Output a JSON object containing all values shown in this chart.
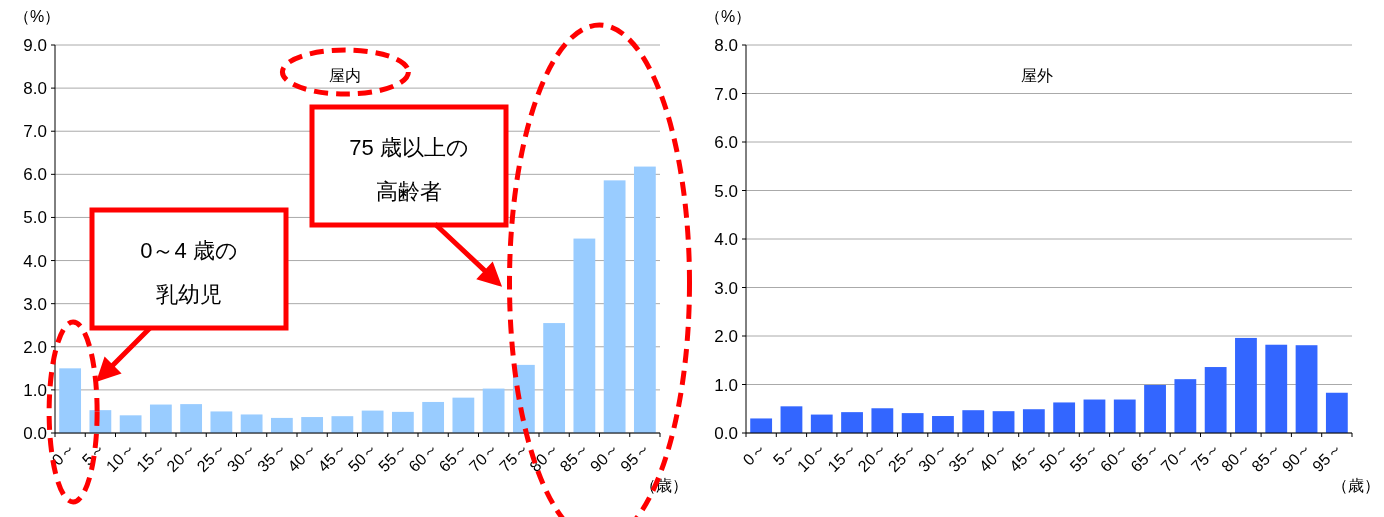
{
  "chart_data": [
    {
      "type": "bar",
      "title": "屋内",
      "ylabel": "（%）",
      "xlabel": "（歳）",
      "grid": "y",
      "color": "#99ccff",
      "categories": [
        "0～",
        "5～",
        "10～",
        "15～",
        "20～",
        "25～",
        "30～",
        "35～",
        "40～",
        "45～",
        "50～",
        "55～",
        "60～",
        "65～",
        "70～",
        "75～",
        "80～",
        "85～",
        "90～",
        "95～"
      ],
      "values": [
        1.5,
        0.53,
        0.41,
        0.66,
        0.67,
        0.5,
        0.43,
        0.35,
        0.37,
        0.39,
        0.52,
        0.49,
        0.72,
        0.82,
        1.03,
        1.58,
        2.55,
        4.51,
        5.86,
        6.18
      ],
      "ylim": [
        0,
        9
      ],
      "yticks": [
        {
          "value": 0,
          "label": "0.0"
        },
        {
          "value": 1,
          "label": "1.0"
        },
        {
          "value": 2,
          "label": "2.0"
        },
        {
          "value": 3,
          "label": "3.0"
        },
        {
          "value": 4,
          "label": "4.0"
        },
        {
          "value": 5,
          "label": "5.0"
        },
        {
          "value": 6,
          "label": "6.0"
        },
        {
          "value": 7,
          "label": "7.0"
        },
        {
          "value": 8,
          "label": "8.0"
        },
        {
          "value": 9,
          "label": "9.0"
        }
      ],
      "annotations": [
        "0～4 歳の",
        "乳幼児",
        "75 歳以上の",
        "高齢者"
      ]
    },
    {
      "type": "bar",
      "title": "屋外",
      "ylabel": "（%）",
      "xlabel": "（歳）",
      "grid": "y",
      "color": "#3366ff",
      "categories": [
        "0～",
        "5～",
        "10～",
        "15～",
        "20～",
        "25～",
        "30～",
        "35～",
        "40～",
        "45～",
        "50～",
        "55～",
        "60～",
        "65～",
        "70～",
        "75～",
        "80～",
        "85～",
        "90～",
        "95～"
      ],
      "values": [
        0.3,
        0.55,
        0.38,
        0.43,
        0.51,
        0.41,
        0.35,
        0.47,
        0.45,
        0.49,
        0.63,
        0.69,
        0.69,
        0.99,
        1.11,
        1.36,
        1.96,
        1.82,
        1.81,
        0.83
      ],
      "ylim": [
        0,
        8
      ],
      "yticks": [
        {
          "value": 0,
          "label": "0.0"
        },
        {
          "value": 1,
          "label": "1.0"
        },
        {
          "value": 2,
          "label": "2.0"
        },
        {
          "value": 3,
          "label": "3.0"
        },
        {
          "value": 4,
          "label": "4.0"
        },
        {
          "value": 5,
          "label": "5.0"
        },
        {
          "value": 6,
          "label": "6.0"
        },
        {
          "value": 7,
          "label": "7.0"
        },
        {
          "value": 8,
          "label": "8.0"
        }
      ]
    }
  ]
}
